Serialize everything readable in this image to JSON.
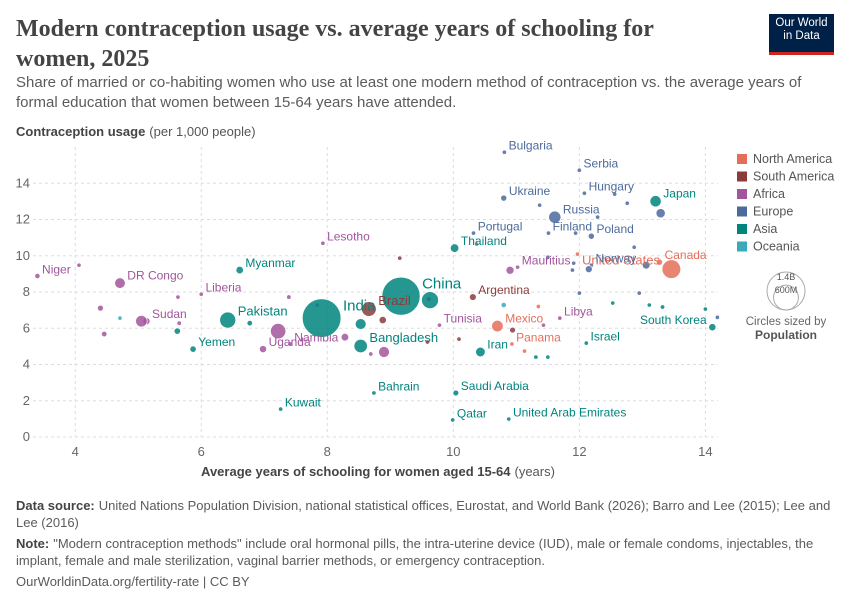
{
  "logo": {
    "lines": [
      "Our World",
      "in Data"
    ]
  },
  "chart_data": {
    "type": "scatter",
    "title": "Modern contraception usage vs. average years of schooling for women, 2025",
    "subtitle": "Share of married or co-habiting women who use at least one modern method of contraception vs. the average years of formal education that women between 15-64 years have attended.",
    "y_label": "Contraception usage",
    "y_unit": "(per 1,000 people)",
    "x_label": "Average years of schooling for women aged 15-64",
    "x_unit": "(years)",
    "xlim": [
      3.33,
      14.2
    ],
    "ylim": [
      0,
      16
    ],
    "xticks": [
      4,
      6,
      8,
      10,
      12,
      14
    ],
    "yticks": [
      0,
      2,
      4,
      6,
      8,
      10,
      12,
      14
    ],
    "grid": true,
    "legend": "right",
    "series": [
      {
        "name": "North America",
        "color": "#e56e5a",
        "labels": [
          "United States",
          "Canada",
          "Mexico",
          "Panama",
          null,
          null,
          null,
          null
        ],
        "x": [
          13.46,
          13.27,
          10.7,
          10.93,
          10.37,
          11.97,
          11.13,
          11.35
        ],
        "values": [
          9.26,
          9.65,
          6.12,
          5.13,
          10.64,
          10.09,
          4.74,
          7.2
        ],
        "sizes": [
          340000000,
          39000000,
          130000000,
          4500000,
          5000000,
          10000000,
          6000000,
          3000000
        ]
      },
      {
        "name": "South America",
        "color": "#8c3b3b",
        "labels": [
          "Brazil",
          "Argentina",
          null,
          null,
          null,
          null,
          null,
          null
        ],
        "x": [
          8.66,
          10.31,
          9.15,
          9.61,
          10.09,
          10.94,
          9.59,
          8.88
        ],
        "values": [
          7.06,
          7.72,
          9.87,
          7.61,
          5.4,
          5.9,
          5.24,
          6.45
        ],
        "sizes": [
          211000000,
          46000000,
          2000000,
          20000000,
          12000000,
          34000000,
          9000000,
          52000000
        ]
      },
      {
        "name": "Africa",
        "color": "#a2559c",
        "labels": [
          "Niger",
          "DR Congo",
          "Liberia",
          "Sudan",
          "Namibia",
          "Uganda",
          "Mauritius",
          "Tunisia",
          "Libya",
          "Lesotho",
          null,
          null,
          null,
          null,
          null,
          null,
          null,
          null,
          null,
          null,
          null,
          null,
          null,
          null
        ],
        "x": [
          3.4,
          4.71,
          6.0,
          5.13,
          7.41,
          6.98,
          11.02,
          9.78,
          11.69,
          7.93,
          10.9,
          7.22,
          5.05,
          8.9,
          4.06,
          4.4,
          5.63,
          5.65,
          7.39,
          7.84,
          8.28,
          4.46,
          8.69,
          11.43
        ],
        "values": [
          8.88,
          8.49,
          7.88,
          6.39,
          5.13,
          4.85,
          9.37,
          6.17,
          6.56,
          10.69,
          9.2,
          5.84,
          6.39,
          4.69,
          9.48,
          7.11,
          7.72,
          6.28,
          7.72,
          7.28,
          5.51,
          5.68,
          4.58,
          6.17
        ],
        "sizes": [
          27000000,
          110000000,
          5500000,
          50000000,
          3000000,
          50000000,
          1300000,
          12000000,
          7000000,
          2300000,
          63000000,
          230000000,
          130000000,
          115000000,
          1000000,
          35000000,
          10000000,
          20000000,
          20000000,
          3000000,
          56000000,
          30000000,
          15000000,
          9000000
        ]
      },
      {
        "name": "Europe",
        "color": "#4c6a9c",
        "labels": [
          "Bulgaria",
          "Serbia",
          "Ukraine",
          "Hungary",
          "Russia",
          "Portugal",
          "Finland",
          "Poland",
          "Norway",
          null,
          null,
          null,
          null,
          null,
          null,
          null,
          null,
          null,
          null,
          null,
          null,
          null,
          null,
          null
        ],
        "x": [
          10.81,
          12.0,
          10.8,
          12.08,
          11.61,
          10.32,
          11.51,
          12.19,
          12.19,
          13.29,
          11.94,
          12.29,
          12.56,
          12.76,
          13.06,
          11.91,
          12.15,
          11.89,
          11.5,
          12.95,
          12.0,
          14.19,
          11.37,
          12.87
        ],
        "values": [
          15.71,
          14.72,
          13.18,
          13.45,
          12.13,
          11.25,
          11.25,
          11.08,
          9.48,
          12.35,
          11.25,
          12.13,
          13.4,
          12.9,
          9.48,
          9.59,
          9.26,
          9.21,
          9.92,
          7.94,
          7.94,
          6.6,
          12.79,
          10.47
        ],
        "sizes": [
          6400000,
          6700000,
          37000000,
          9600000,
          145000000,
          10400000,
          5600000,
          38000000,
          5500000,
          84000000,
          10000000,
          3000000,
          4000000,
          3000000,
          59000000,
          17000000,
          48000000,
          10000000,
          3000000,
          3000000,
          2000000,
          2000000,
          4000000,
          1000000
        ]
      },
      {
        "name": "Asia",
        "color": "#00847e",
        "labels": [
          "China",
          "India",
          "Myanmar",
          "Pakistan",
          "Yemen",
          "Bangladesh",
          "Thailand",
          "Japan",
          "South Korea",
          "Iran",
          "Israel",
          "Saudi Arabia",
          "Bahrain",
          "Kuwait",
          "Qatar",
          "United Arab Emirates",
          null,
          null,
          null,
          null,
          null,
          null,
          null,
          null,
          null,
          null
        ],
        "x": [
          9.17,
          7.91,
          6.61,
          6.42,
          5.87,
          8.53,
          10.02,
          13.21,
          14.11,
          10.43,
          12.11,
          10.04,
          8.74,
          7.26,
          9.99,
          10.88,
          9.63,
          8.53,
          5.62,
          6.77,
          11.31,
          11.5,
          13.11,
          13.32,
          14.0,
          12.53
        ],
        "values": [
          7.77,
          6.56,
          9.21,
          6.45,
          4.85,
          5.02,
          10.42,
          13.01,
          6.06,
          4.69,
          5.18,
          2.43,
          2.43,
          1.54,
          0.94,
          0.99,
          7.55,
          6.23,
          5.84,
          6.28,
          4.41,
          4.41,
          7.28,
          7.17,
          7.06,
          7.39
        ],
        "sizes": [
          1410000000,
          1450000000,
          54000000,
          250000000,
          40000000,
          175000000,
          72000000,
          124000000,
          52000000,
          90000000,
          10000000,
          34000000,
          1600000,
          4900000,
          3000000,
          10000000,
          280000000,
          115000000,
          40000000,
          30000000,
          8000000,
          6000000,
          5000000,
          20000000,
          5000000,
          3000000
        ]
      },
      {
        "name": "Oceania",
        "color": "#38aaba",
        "labels": [
          null,
          null
        ],
        "x": [
          4.71,
          10.8
        ],
        "values": [
          6.56,
          7.28
        ],
        "sizes": [
          10000000,
          27000000
        ]
      }
    ],
    "size_legend": {
      "title": "Circles sized by",
      "variable": "Population",
      "ticks": [
        {
          "value": 1400000000,
          "label": "1.4B"
        },
        {
          "value": 600000000,
          "label": "600M"
        }
      ]
    }
  },
  "footer": {
    "source_label": "Data source:",
    "source": "United Nations Population Division, national statistical offices, Eurostat, and World Bank (2026); Barro and Lee (2015); Lee and Lee (2016)",
    "note_label": "Note:",
    "note": "\"Modern contraception methods\" include oral hormonal pills, the intra-uterine device (IUD), male or female condoms, injectables, the implant, female and male sterilization, vaginal barrier methods, or emergency contraception.",
    "url": "OurWorldinData.org/fertility-rate | CC BY"
  }
}
